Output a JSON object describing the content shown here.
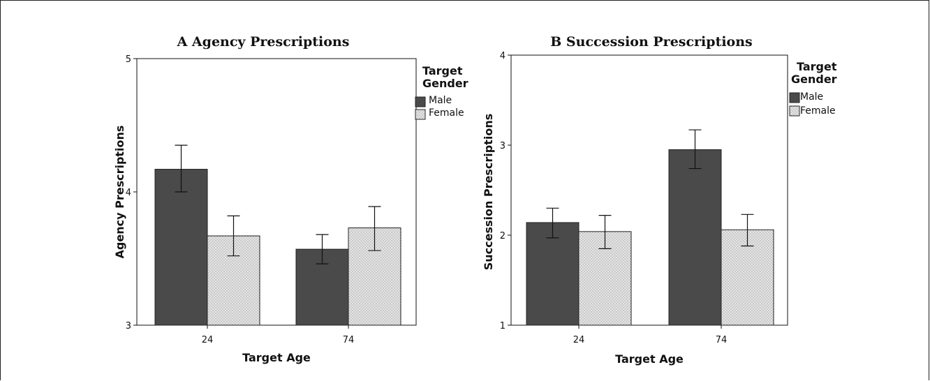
{
  "colors": {
    "male": "#4a4a4a",
    "female": "#e2e2e2",
    "axis": "#111111"
  },
  "chart_data": [
    {
      "type": "bar",
      "title": "A Agency Prescriptions",
      "xlabel": "Target Age",
      "ylabel": "Agency Prescriptions",
      "categories": [
        "24",
        "74"
      ],
      "ylim": [
        3,
        5
      ],
      "yticks": [
        "3",
        "4",
        "5"
      ],
      "legend_title_line1": "Target",
      "legend_title_line2": "Gender",
      "legend_position": "right",
      "series": [
        {
          "name": "Male",
          "values": [
            4.17,
            3.57
          ],
          "err_low": [
            4.0,
            3.46
          ],
          "err_high": [
            4.35,
            3.68
          ]
        },
        {
          "name": "Female",
          "values": [
            3.67,
            3.73
          ],
          "err_low": [
            3.52,
            3.56
          ],
          "err_high": [
            3.82,
            3.89
          ]
        }
      ]
    },
    {
      "type": "bar",
      "title": "B Succession Prescriptions",
      "xlabel": "Target Age",
      "ylabel": "Succession Prescriptions",
      "categories": [
        "24",
        "74"
      ],
      "ylim": [
        1,
        4
      ],
      "yticks": [
        "1",
        "2",
        "3",
        "4"
      ],
      "legend_title_line1": "Target",
      "legend_title_line2": "Gender",
      "legend_position": "right",
      "series": [
        {
          "name": "Male",
          "values": [
            2.14,
            2.95
          ],
          "err_low": [
            1.97,
            2.74
          ],
          "err_high": [
            2.3,
            3.17
          ]
        },
        {
          "name": "Female",
          "values": [
            2.04,
            2.06
          ],
          "err_low": [
            1.85,
            1.88
          ],
          "err_high": [
            2.22,
            2.23
          ]
        }
      ]
    }
  ]
}
